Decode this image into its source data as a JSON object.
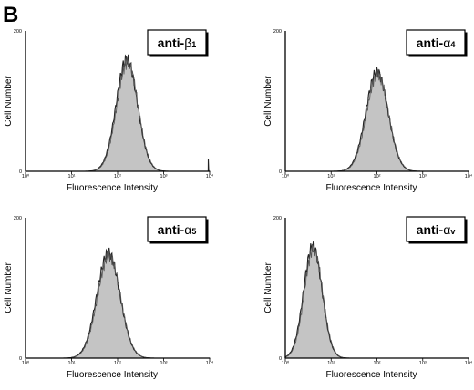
{
  "figure": {
    "panel_letter": "B"
  },
  "chart_data": [
    {
      "type": "area",
      "label": "anti-β1",
      "label_main": "anti-",
      "label_greek": "β",
      "label_sub": "1",
      "xlabel": "Fluorescence Intensity",
      "ylabel": "Cell Number",
      "x_scale": "log",
      "xlim": [
        1,
        10000
      ],
      "ylim": [
        0,
        200
      ],
      "x_ticks": [
        "10⁰",
        "10¹",
        "10²",
        "10³",
        "10⁴"
      ],
      "y_ticks": [
        "0",
        "200"
      ],
      "peak": {
        "center_log10": 2.2,
        "sigma_log10": 0.23,
        "height": 160
      },
      "extra_spike": {
        "log10": 3.97,
        "height": 18
      },
      "fill_color": "#c4c4c4"
    },
    {
      "type": "area",
      "label": "anti-α4",
      "label_main": "anti-",
      "label_greek": "α",
      "label_sub": "4",
      "xlabel": "Fluorescence Intensity",
      "ylabel": "Cell Number",
      "x_scale": "log",
      "xlim": [
        1,
        10000
      ],
      "ylim": [
        0,
        200
      ],
      "x_ticks": [
        "10⁰",
        "10¹",
        "10²",
        "10³",
        "10⁴"
      ],
      "y_ticks": [
        "0",
        "200"
      ],
      "peak": {
        "center_log10": 2.0,
        "sigma_log10": 0.24,
        "height": 142
      },
      "fill_color": "#c4c4c4"
    },
    {
      "type": "area",
      "label": "anti-α5",
      "label_main": "anti-",
      "label_greek": "α",
      "label_sub": "5",
      "xlabel": "Fluorescence Intensity",
      "ylabel": "Cell Number",
      "x_scale": "log",
      "xlim": [
        1,
        10000
      ],
      "ylim": [
        0,
        200
      ],
      "x_ticks": [
        "10⁰",
        "10¹",
        "10²",
        "10³",
        "10⁴"
      ],
      "y_ticks": [
        "0",
        "200"
      ],
      "peak": {
        "center_log10": 1.8,
        "sigma_log10": 0.25,
        "height": 150
      },
      "fill_color": "#c4c4c4"
    },
    {
      "type": "area",
      "label": "anti-αv",
      "label_main": "anti-",
      "label_greek": "α",
      "label_sub": "v",
      "xlabel": "Fluorescence Intensity",
      "ylabel": "Cell Number",
      "x_scale": "log",
      "xlim": [
        1,
        10000
      ],
      "ylim": [
        0,
        200
      ],
      "x_ticks": [
        "10⁰",
        "10¹",
        "10²",
        "10³",
        "10⁴"
      ],
      "y_ticks": [
        "0",
        "200"
      ],
      "peak": {
        "center_log10": 0.6,
        "sigma_log10": 0.2,
        "height": 160
      },
      "fill_color": "#c4c4c4"
    }
  ]
}
